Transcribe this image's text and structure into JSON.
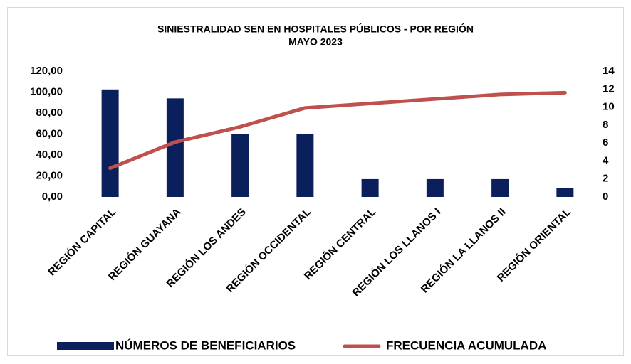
{
  "chart_data": {
    "type": "bar",
    "title": "SINIESTRALIDAD SEN EN HOSPITALES PÚBLICOS - POR REGIÓN",
    "subtitle": "MAYO 2023",
    "categories": [
      "REGIÓN CAPITAL",
      "REGIÓN GUAYANA",
      "REGIÓN LOS ANDES",
      "REGIÓN OCCIDENTAL",
      "REGIÓN CENTRAL",
      "REGIÓN LOS LLANOS I",
      "REGIÓN LA LLANOS II",
      "REGIÓN ORIENTAL"
    ],
    "series": [
      {
        "name": "NÚMEROS DE BENEFICIARIOS",
        "type": "bar",
        "color": "#0b1f5c",
        "axis": "y",
        "values": [
          102.5,
          94,
          60,
          60,
          17,
          17,
          17,
          8.5
        ]
      },
      {
        "name": "FRECUENCIA ACUMULADA",
        "type": "line",
        "color": "#c0504d",
        "axis": "y2",
        "values": [
          3.2,
          6.1,
          7.8,
          9.9,
          10.4,
          10.9,
          11.4,
          11.6
        ]
      }
    ],
    "ylim": [
      0,
      120
    ],
    "yticks": [
      {
        "value": 0,
        "label": "0,00"
      },
      {
        "value": 20,
        "label": "20,00"
      },
      {
        "value": 40,
        "label": "40,00"
      },
      {
        "value": 60,
        "label": "60,00"
      },
      {
        "value": 80,
        "label": "80,00"
      },
      {
        "value": 100,
        "label": "100,00"
      },
      {
        "value": 120,
        "label": "120,00"
      }
    ],
    "y2lim": [
      0,
      14
    ],
    "y2ticks": [
      0,
      2,
      4,
      6,
      8,
      10,
      12,
      14
    ],
    "grid": false,
    "legend": "bottom"
  }
}
